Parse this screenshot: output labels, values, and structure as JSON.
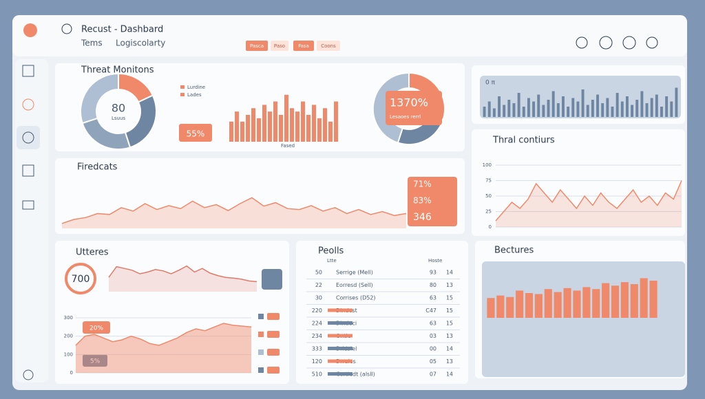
{
  "header": {
    "title": "Recust - Dashbard",
    "tabs": [
      "Tems",
      "Logiscolarty"
    ],
    "chips": [
      "Pasca",
      "Paso",
      "Fasa",
      "Coons"
    ]
  },
  "threat": {
    "title": "Threat Monitons",
    "donut": {
      "center": "80",
      "sub": "Lsuus",
      "values": [
        18,
        27,
        25,
        30
      ],
      "colors": [
        "#f0896a",
        "#6f86a3",
        "#8fa3bb",
        "#aebfd3"
      ]
    },
    "legend": [
      "Lurdine",
      "Lades"
    ],
    "badge": "55%",
    "bars": {
      "label": "Fased",
      "color": "#f0896a",
      "ylim": [
        0,
        80
      ],
      "values": [
        30,
        45,
        30,
        40,
        50,
        35,
        55,
        45,
        60,
        40,
        70,
        50,
        45,
        60,
        40,
        55,
        35,
        50,
        30,
        60
      ]
    },
    "donut2": {
      "center": "1370%",
      "sub": "Lesaoes rerrl",
      "values": [
        30,
        25,
        45
      ],
      "colors": [
        "#f0896a",
        "#6f86a3",
        "#aebfd3"
      ]
    }
  },
  "strip": {
    "label": "0 π",
    "color": "#6f86a3",
    "ylim": [
      0,
      100
    ],
    "values": [
      30,
      45,
      25,
      60,
      35,
      50,
      40,
      70,
      30,
      55,
      45,
      65,
      35,
      50,
      75,
      40,
      60,
      30,
      55,
      45,
      80,
      35,
      50,
      65,
      40,
      55,
      30,
      70,
      45,
      60,
      35,
      50,
      75,
      40,
      55,
      65,
      30,
      60,
      45,
      85
    ]
  },
  "forecasts": {
    "title": "Firedcats",
    "color": "#f0896a",
    "ylim": [
      0,
      100
    ],
    "values": [
      10,
      18,
      22,
      30,
      28,
      42,
      35,
      50,
      38,
      46,
      40,
      55,
      42,
      48,
      36,
      50,
      62,
      45,
      52,
      40,
      38,
      46,
      35,
      42,
      30,
      38,
      28,
      34,
      26,
      30
    ],
    "callouts": [
      "71%",
      "83%",
      "346"
    ]
  },
  "thral": {
    "title": "Thral contiurs",
    "color": "#f0896a",
    "ylim": [
      0,
      100
    ],
    "yticks": [
      0,
      25,
      50,
      75,
      100
    ],
    "values": [
      10,
      25,
      40,
      30,
      45,
      70,
      55,
      40,
      60,
      45,
      30,
      50,
      35,
      55,
      40,
      30,
      45,
      60,
      40,
      50,
      35,
      55,
      45,
      75
    ]
  },
  "utteres": {
    "title": "Utteres",
    "gauge": "700",
    "line": {
      "color": "#e07a68",
      "ylim": [
        0,
        100
      ],
      "values": [
        40,
        70,
        65,
        60,
        50,
        55,
        62,
        58,
        50,
        60,
        72,
        55,
        65,
        52,
        45,
        40,
        38,
        35,
        30,
        28
      ]
    },
    "area": {
      "color": "#f0896a",
      "ylim": [
        0,
        300
      ],
      "yticks": [
        0,
        100,
        200,
        300
      ],
      "values": [
        150,
        200,
        210,
        190,
        170,
        180,
        200,
        185,
        160,
        150,
        170,
        190,
        220,
        240,
        230,
        250,
        270,
        260,
        255,
        250
      ]
    },
    "badges": [
      "20%",
      "5%"
    ]
  },
  "peolls": {
    "title": "Peolls",
    "columns": [
      "Ltte",
      "Hoste"
    ],
    "rows": [
      [
        "50",
        "Serrige (Mell)",
        "93",
        "14"
      ],
      [
        "22",
        "Eorresd (Sell)",
        "80",
        "13"
      ],
      [
        "30",
        "Corrises (D52)",
        "63",
        "15"
      ],
      [
        "220",
        "Dindest",
        "C47",
        "15"
      ],
      [
        "224",
        "Dindeci",
        "63",
        "15"
      ],
      [
        "234",
        "Ontle",
        "03",
        "13"
      ],
      [
        "333",
        "Dridsiel",
        "00",
        "14"
      ],
      [
        "120",
        "Drrales",
        "05",
        "13"
      ],
      [
        "510",
        "Cortiedt (alsll)",
        "07",
        "14"
      ]
    ]
  },
  "bectures": {
    "title": "Bectures",
    "color": "#f0896a",
    "ylim": [
      0,
      100
    ],
    "values": [
      40,
      45,
      42,
      55,
      50,
      48,
      58,
      52,
      60,
      55,
      62,
      58,
      70,
      65,
      72,
      68,
      80,
      75
    ]
  }
}
